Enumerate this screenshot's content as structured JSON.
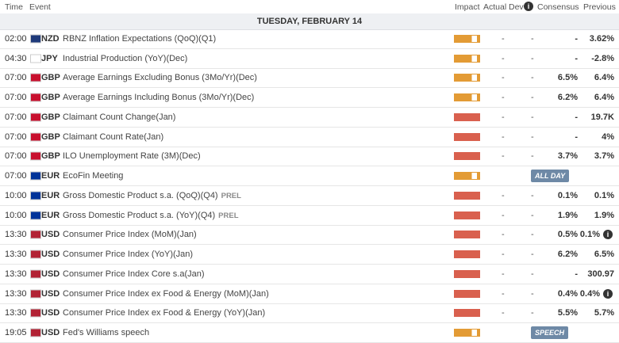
{
  "header": {
    "columns": [
      "Time",
      "Event",
      "Impact",
      "Actual",
      "Dev",
      "Consensus",
      "Previous"
    ]
  },
  "date": "TUESDAY, FEBRUARY 14",
  "impact_colors": {
    "medium": "#e39b35",
    "high": "#d9604e"
  },
  "rows": [
    {
      "time": "02:00",
      "currency": "NZD",
      "flag_color": "#1f3a7a",
      "event": "RBNZ Inflation Expectations (QoQ)(Q1)",
      "impact": "medium",
      "actual": "-",
      "dev": "-",
      "consensus": "-",
      "previous": "3.62%"
    },
    {
      "time": "04:30",
      "currency": "JPY",
      "flag_color": "#ffffff",
      "event": "Industrial Production (YoY)(Dec)",
      "impact": "medium",
      "actual": "-",
      "dev": "-",
      "consensus": "-",
      "previous": "-2.8%"
    },
    {
      "time": "07:00",
      "currency": "GBP",
      "flag_color": "#c8102e",
      "event": "Average Earnings Excluding Bonus (3Mo/Yr)(Dec)",
      "impact": "medium",
      "actual": "-",
      "dev": "-",
      "consensus": "6.5%",
      "previous": "6.4%"
    },
    {
      "time": "07:00",
      "currency": "GBP",
      "flag_color": "#c8102e",
      "event": "Average Earnings Including Bonus (3Mo/Yr)(Dec)",
      "impact": "medium",
      "actual": "-",
      "dev": "-",
      "consensus": "6.2%",
      "previous": "6.4%"
    },
    {
      "time": "07:00",
      "currency": "GBP",
      "flag_color": "#c8102e",
      "event": "Claimant Count Change(Jan)",
      "impact": "high",
      "actual": "-",
      "dev": "-",
      "consensus": "-",
      "previous": "19.7K"
    },
    {
      "time": "07:00",
      "currency": "GBP",
      "flag_color": "#c8102e",
      "event": "Claimant Count Rate(Jan)",
      "impact": "high",
      "actual": "-",
      "dev": "-",
      "consensus": "-",
      "previous": "4%"
    },
    {
      "time": "07:00",
      "currency": "GBP",
      "flag_color": "#c8102e",
      "event": "ILO Unemployment Rate (3M)(Dec)",
      "impact": "high",
      "actual": "-",
      "dev": "-",
      "consensus": "3.7%",
      "previous": "3.7%"
    },
    {
      "time": "07:00",
      "currency": "EUR",
      "flag_color": "#003399",
      "event": "EcoFin Meeting",
      "impact": "medium",
      "badge": "ALL DAY"
    },
    {
      "time": "10:00",
      "currency": "EUR",
      "flag_color": "#003399",
      "event": "Gross Domestic Product s.a. (QoQ)(Q4)",
      "tag": "PREL",
      "impact": "high",
      "actual": "-",
      "dev": "-",
      "consensus": "0.1%",
      "previous": "0.1%"
    },
    {
      "time": "10:00",
      "currency": "EUR",
      "flag_color": "#003399",
      "event": "Gross Domestic Product s.a. (YoY)(Q4)",
      "tag": "PREL",
      "impact": "high",
      "actual": "-",
      "dev": "-",
      "consensus": "1.9%",
      "previous": "1.9%"
    },
    {
      "time": "13:30",
      "currency": "USD",
      "flag_color": "#b22234",
      "event": "Consumer Price Index (MoM)(Jan)",
      "impact": "high",
      "actual": "-",
      "dev": "-",
      "consensus": "0.5%",
      "previous": "0.1%",
      "info": true
    },
    {
      "time": "13:30",
      "currency": "USD",
      "flag_color": "#b22234",
      "event": "Consumer Price Index (YoY)(Jan)",
      "impact": "high",
      "actual": "-",
      "dev": "-",
      "consensus": "6.2%",
      "previous": "6.5%"
    },
    {
      "time": "13:30",
      "currency": "USD",
      "flag_color": "#b22234",
      "event": "Consumer Price Index Core s.a(Jan)",
      "impact": "high",
      "actual": "-",
      "dev": "-",
      "consensus": "-",
      "previous": "300.97"
    },
    {
      "time": "13:30",
      "currency": "USD",
      "flag_color": "#b22234",
      "event": "Consumer Price Index ex Food & Energy (MoM)(Jan)",
      "impact": "high",
      "actual": "-",
      "dev": "-",
      "consensus": "0.4%",
      "previous": "0.4%",
      "info": true
    },
    {
      "time": "13:30",
      "currency": "USD",
      "flag_color": "#b22234",
      "event": "Consumer Price Index ex Food & Energy (YoY)(Jan)",
      "impact": "high",
      "actual": "-",
      "dev": "-",
      "consensus": "5.5%",
      "previous": "5.7%"
    },
    {
      "time": "19:05",
      "currency": "USD",
      "flag_color": "#b22234",
      "event": "Fed's Williams speech",
      "impact": "medium",
      "badge": "SPEECH"
    }
  ]
}
